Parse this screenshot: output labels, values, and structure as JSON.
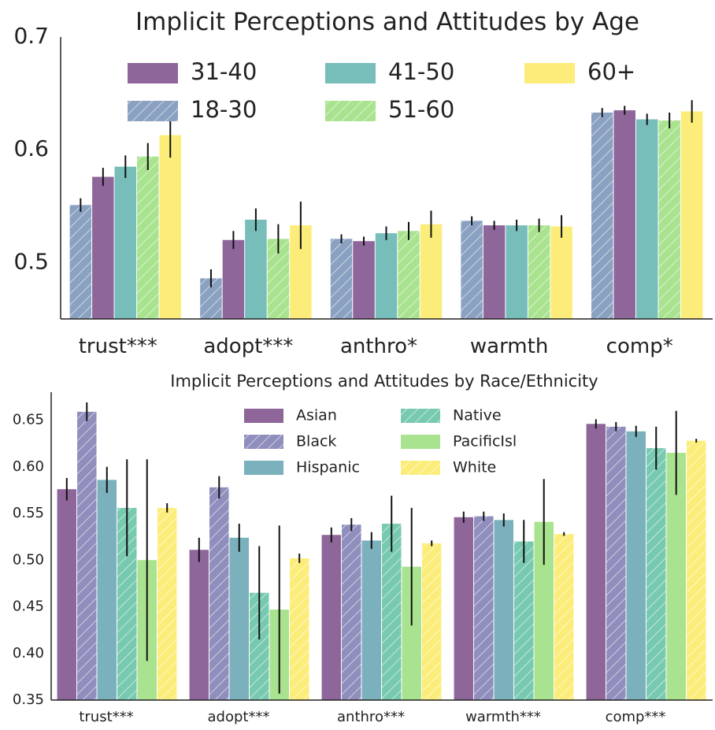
{
  "chart_data": [
    {
      "type": "bar",
      "title": "Implicit Perceptions and Attitudes by Age",
      "xlabel": "",
      "ylabel": "",
      "categories": [
        "trust***",
        "adopt***",
        "anthro*",
        "warmth",
        "comp*"
      ],
      "ylim": [
        0.45,
        0.7
      ],
      "yticks": [
        "0.5",
        "0.6",
        "0.7"
      ],
      "legend_position": "top",
      "grid": false,
      "series": [
        {
          "name": "18-30",
          "color": "#8aa1c1",
          "hatch": true,
          "values": [
            0.551,
            0.486,
            0.521,
            0.537,
            0.633
          ],
          "err": [
            0.006,
            0.008,
            0.004,
            0.004,
            0.004
          ]
        },
        {
          "name": "31-40",
          "color": "#8e6699",
          "hatch": false,
          "values": [
            0.576,
            0.52,
            0.519,
            0.533,
            0.635
          ],
          "err": [
            0.008,
            0.008,
            0.004,
            0.004,
            0.004
          ]
        },
        {
          "name": "41-50",
          "color": "#77bdba",
          "hatch": false,
          "values": [
            0.585,
            0.538,
            0.526,
            0.533,
            0.627
          ],
          "err": [
            0.01,
            0.01,
            0.006,
            0.005,
            0.005
          ]
        },
        {
          "name": "51-60",
          "color": "#a9e38f",
          "hatch": true,
          "values": [
            0.594,
            0.521,
            0.528,
            0.533,
            0.626
          ],
          "err": [
            0.012,
            0.013,
            0.008,
            0.006,
            0.007
          ]
        },
        {
          "name": "60+",
          "color": "#fced7a",
          "hatch": false,
          "values": [
            0.613,
            0.533,
            0.534,
            0.532,
            0.634
          ],
          "err": [
            0.02,
            0.021,
            0.012,
            0.01,
            0.01
          ]
        }
      ],
      "legend_order": [
        "31-40",
        "41-50",
        "60+",
        "18-30",
        "51-60"
      ]
    },
    {
      "type": "bar",
      "title": "Implicit Perceptions and Attitudes by Race/Ethnicity",
      "xlabel": "",
      "ylabel": "",
      "categories": [
        "trust***",
        "adopt***",
        "anthro***",
        "warmth***",
        "comp***"
      ],
      "ylim": [
        0.35,
        0.68
      ],
      "yticks": [
        "0.35",
        "0.40",
        "0.45",
        "0.50",
        "0.55",
        "0.60",
        "0.65"
      ],
      "legend_position": "top-center",
      "grid": false,
      "series": [
        {
          "name": "Asian",
          "color": "#8e6699",
          "hatch": false,
          "values": [
            0.576,
            0.511,
            0.527,
            0.546,
            0.646
          ],
          "err": [
            0.012,
            0.013,
            0.008,
            0.006,
            0.005
          ]
        },
        {
          "name": "Black",
          "color": "#8f8ebd",
          "hatch": true,
          "values": [
            0.659,
            0.578,
            0.538,
            0.547,
            0.643
          ],
          "err": [
            0.01,
            0.012,
            0.007,
            0.005,
            0.005
          ]
        },
        {
          "name": "Hispanic",
          "color": "#7bb0bd",
          "hatch": false,
          "values": [
            0.586,
            0.524,
            0.521,
            0.543,
            0.638
          ],
          "err": [
            0.014,
            0.015,
            0.009,
            0.007,
            0.006
          ]
        },
        {
          "name": "Native",
          "color": "#77c9b0",
          "hatch": true,
          "values": [
            0.556,
            0.465,
            0.539,
            0.52,
            0.62
          ],
          "err": [
            0.052,
            0.05,
            0.03,
            0.023,
            0.023
          ]
        },
        {
          "name": "PacificIsl",
          "color": "#a9e38f",
          "hatch": false,
          "values": [
            0.5,
            0.447,
            0.493,
            0.541,
            0.615
          ],
          "err": [
            0.108,
            0.09,
            0.063,
            0.046,
            0.045
          ]
        },
        {
          "name": "White",
          "color": "#fced7a",
          "hatch": true,
          "values": [
            0.556,
            0.502,
            0.518,
            0.528,
            0.628
          ],
          "err": [
            0.005,
            0.005,
            0.003,
            0.002,
            0.002
          ]
        }
      ],
      "legend_order": [
        "Asian",
        "Native",
        "Black",
        "PacificIsl",
        "Hispanic",
        "White"
      ]
    }
  ]
}
